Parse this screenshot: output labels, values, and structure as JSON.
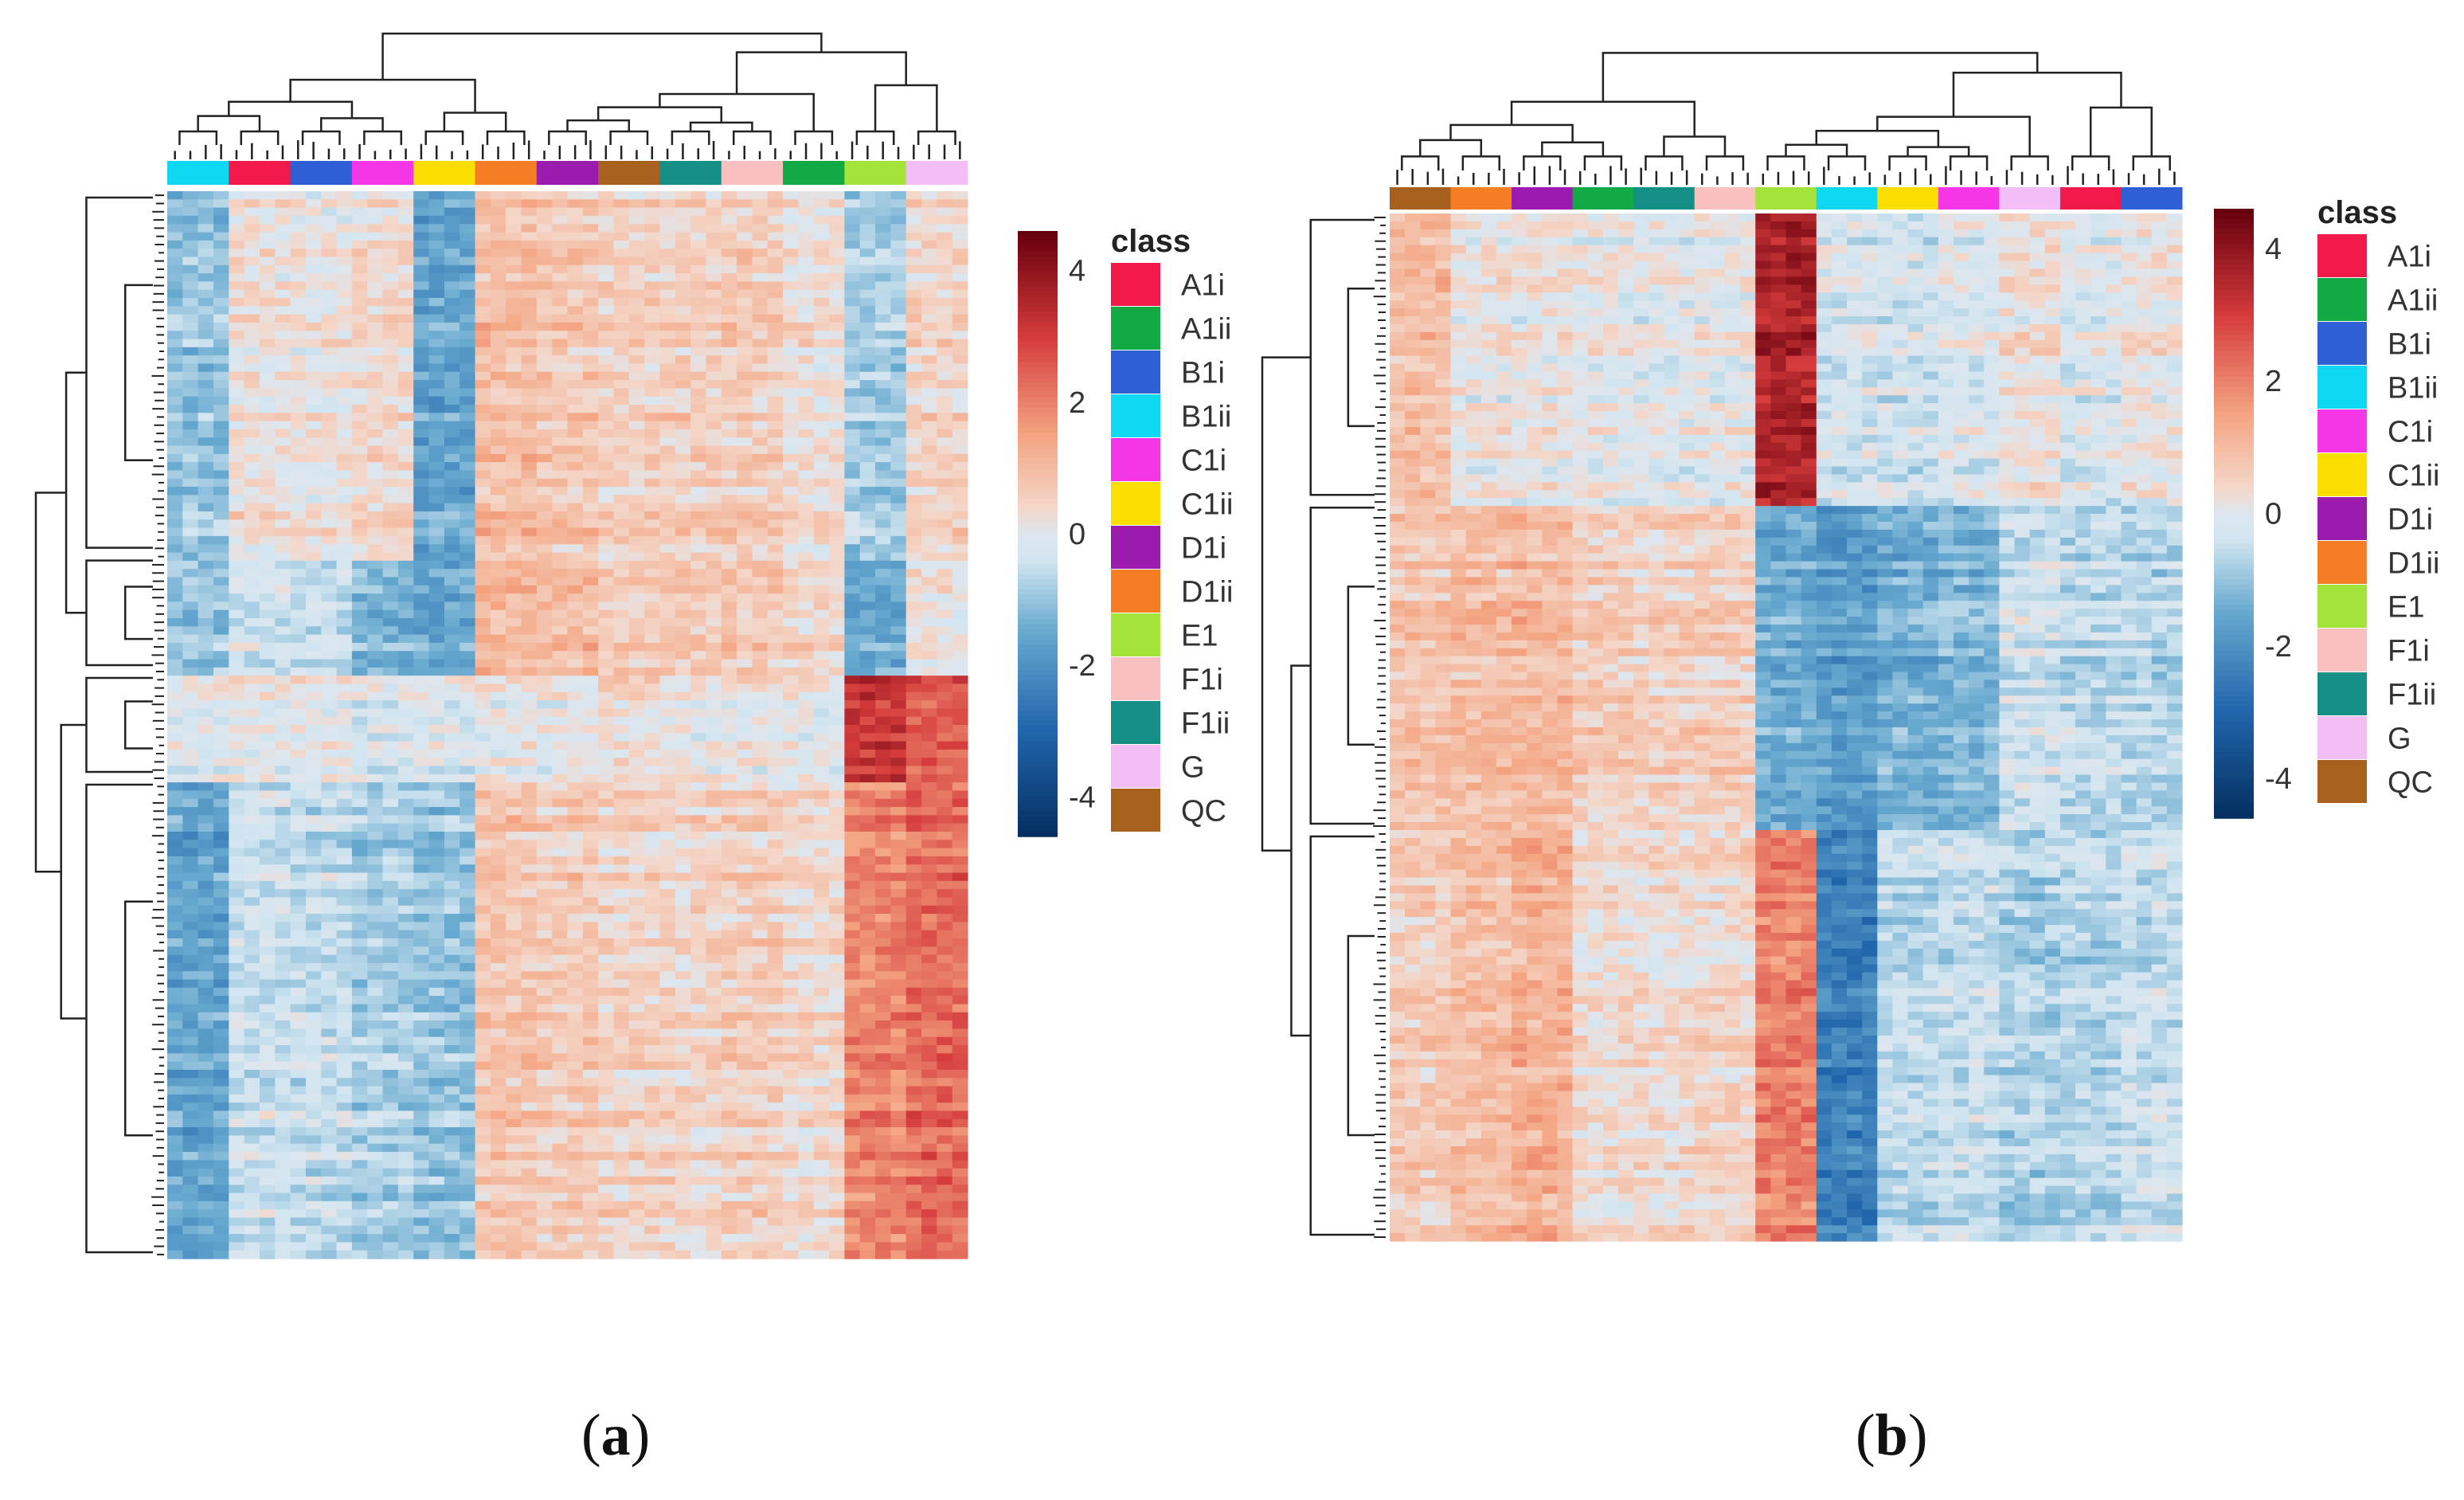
{
  "figure": {
    "panels": [
      {
        "id": "a",
        "label_open": "(",
        "label_letter": "a",
        "label_close": ")"
      },
      {
        "id": "b",
        "label_open": "(",
        "label_letter": "b",
        "label_close": ")"
      }
    ]
  },
  "chart_data": [
    {
      "type": "heatmap",
      "panel": "a",
      "title": "",
      "legend_title": "class",
      "classes": [
        {
          "name": "A1i",
          "color": "#F0194A"
        },
        {
          "name": "A1ii",
          "color": "#11AA44"
        },
        {
          "name": "B1i",
          "color": "#2E5FD6"
        },
        {
          "name": "B1ii",
          "color": "#0FD8F2"
        },
        {
          "name": "C1i",
          "color": "#F536E6"
        },
        {
          "name": "C1ii",
          "color": "#FCDF00"
        },
        {
          "name": "D1i",
          "color": "#9B1BAE"
        },
        {
          "name": "D1ii",
          "color": "#F57E24"
        },
        {
          "name": "E1",
          "color": "#A3E33A"
        },
        {
          "name": "F1i",
          "color": "#FAC0C0"
        },
        {
          "name": "F1ii",
          "color": "#148F86"
        },
        {
          "name": "G",
          "color": "#F3BEF5"
        },
        {
          "name": "QC",
          "color": "#A8601E"
        }
      ],
      "column_groups": [
        "B1ii",
        "A1i",
        "B1i",
        "C1i",
        "C1ii",
        "D1ii",
        "D1i",
        "QC",
        "F1ii",
        "F1i",
        "A1ii",
        "E1",
        "G"
      ],
      "colorbar": {
        "ticks": [
          4,
          2,
          0,
          -2,
          -4
        ],
        "range": [
          -4.6,
          4.6
        ]
      },
      "notes": "row-clustered heatmap of z-scored feature intensities with column and row dendrograms"
    },
    {
      "type": "heatmap",
      "panel": "b",
      "title": "",
      "legend_title": "class",
      "classes": [
        {
          "name": "A1i",
          "color": "#F0194A"
        },
        {
          "name": "A1ii",
          "color": "#11AA44"
        },
        {
          "name": "B1i",
          "color": "#2E5FD6"
        },
        {
          "name": "B1ii",
          "color": "#0FD8F2"
        },
        {
          "name": "C1i",
          "color": "#F536E6"
        },
        {
          "name": "C1ii",
          "color": "#FCDF00"
        },
        {
          "name": "D1i",
          "color": "#9B1BAE"
        },
        {
          "name": "D1ii",
          "color": "#F57E24"
        },
        {
          "name": "E1",
          "color": "#A3E33A"
        },
        {
          "name": "F1i",
          "color": "#FAC0C0"
        },
        {
          "name": "F1ii",
          "color": "#148F86"
        },
        {
          "name": "G",
          "color": "#F3BEF5"
        },
        {
          "name": "QC",
          "color": "#A8601E"
        }
      ],
      "column_groups": [
        "QC",
        "D1ii",
        "D1i",
        "A1ii",
        "F1ii",
        "F1i",
        "E1",
        "B1ii",
        "C1ii",
        "C1i",
        "G",
        "A1i",
        "B1i"
      ],
      "colorbar": {
        "ticks": [
          4,
          2,
          0,
          -2,
          -4
        ],
        "range": [
          -4.6,
          4.6
        ]
      },
      "notes": "row-clustered heatmap of z-scored feature intensities with column and row dendrograms"
    }
  ]
}
